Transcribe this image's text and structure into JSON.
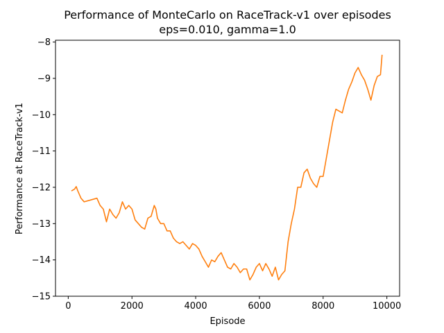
{
  "chart_data": {
    "type": "line",
    "title": "Performance of MonteCarlo on RaceTrack-v1 over episodes",
    "subtitle": "eps=0.010, gamma=1.0",
    "xlabel": "Episode",
    "ylabel": "Performance at RaceTrack-v1",
    "xlim": [
      -400,
      10400
    ],
    "ylim": [
      -15.0,
      -7.95
    ],
    "xticks": [
      0,
      2000,
      4000,
      6000,
      8000,
      10000
    ],
    "yticks": [
      -15,
      -14,
      -13,
      -12,
      -11,
      -10,
      -9,
      -8
    ],
    "xtick_labels": [
      "0",
      "2000",
      "4000",
      "6000",
      "8000",
      "10000"
    ],
    "ytick_labels": [
      "−15",
      "−14",
      "−13",
      "−12",
      "−11",
      "−10",
      "−9",
      "−8"
    ],
    "grid": false,
    "legend": "none",
    "series": [
      {
        "color": "#ff7f0e",
        "x": [
          100,
          200,
          250,
          300,
          400,
          500,
          700,
          900,
          1000,
          1100,
          1200,
          1300,
          1400,
          1500,
          1600,
          1700,
          1800,
          1900,
          2000,
          2100,
          2200,
          2300,
          2400,
          2500,
          2600,
          2700,
          2750,
          2800,
          2900,
          3000,
          3100,
          3200,
          3300,
          3400,
          3500,
          3600,
          3700,
          3800,
          3900,
          4000,
          4100,
          4200,
          4300,
          4400,
          4500,
          4600,
          4700,
          4800,
          4900,
          5000,
          5100,
          5200,
          5300,
          5400,
          5500,
          5600,
          5700,
          5800,
          5900,
          6000,
          6100,
          6200,
          6300,
          6400,
          6500,
          6600,
          6700,
          6800,
          6900,
          7000,
          7100,
          7200,
          7300,
          7400,
          7500,
          7600,
          7700,
          7800,
          7900,
          8000,
          8100,
          8200,
          8300,
          8400,
          8500,
          8600,
          8700,
          8800,
          8900,
          9000,
          9100,
          9200,
          9300,
          9400,
          9500,
          9600,
          9700,
          9800,
          9850
        ],
        "y": [
          -12.1,
          -12.05,
          -11.98,
          -12.1,
          -12.3,
          -12.4,
          -12.35,
          -12.3,
          -12.5,
          -12.6,
          -12.95,
          -12.6,
          -12.75,
          -12.85,
          -12.7,
          -12.4,
          -12.6,
          -12.5,
          -12.6,
          -12.9,
          -13.0,
          -13.1,
          -13.15,
          -12.85,
          -12.8,
          -12.5,
          -12.6,
          -12.85,
          -13.0,
          -13.0,
          -13.2,
          -13.2,
          -13.4,
          -13.5,
          -13.55,
          -13.5,
          -13.6,
          -13.7,
          -13.55,
          -13.6,
          -13.7,
          -13.9,
          -14.05,
          -14.2,
          -14.0,
          -14.05,
          -13.9,
          -13.8,
          -14.0,
          -14.2,
          -14.25,
          -14.1,
          -14.2,
          -14.35,
          -14.25,
          -14.25,
          -14.55,
          -14.4,
          -14.2,
          -14.1,
          -14.3,
          -14.1,
          -14.25,
          -14.45,
          -14.2,
          -14.55,
          -14.4,
          -14.3,
          -13.5,
          -13.0,
          -12.6,
          -12.0,
          -12.0,
          -11.6,
          -11.5,
          -11.75,
          -11.9,
          -12.0,
          -11.7,
          -11.7,
          -11.2,
          -10.7,
          -10.2,
          -9.85,
          -9.9,
          -9.95,
          -9.6,
          -9.3,
          -9.1,
          -8.85,
          -8.7,
          -8.9,
          -9.05,
          -9.3,
          -9.6,
          -9.2,
          -8.95,
          -8.9,
          -8.35
        ]
      }
    ]
  }
}
